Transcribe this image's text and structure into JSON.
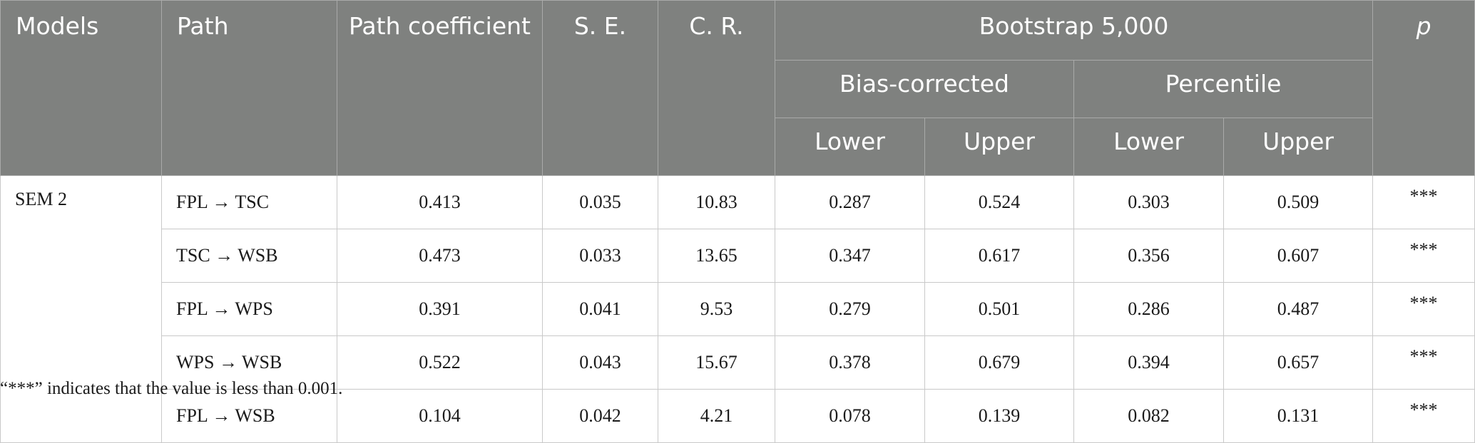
{
  "headers": {
    "models": "Models",
    "path": "Path",
    "path_coefficient": "Path coefficient",
    "se": "S. E.",
    "cr": "C. R.",
    "bootstrap": "Bootstrap 5,000",
    "p": "p",
    "bias_corrected": "Bias-corrected",
    "percentile": "Percentile",
    "bc_lower": "Lower",
    "bc_upper": "Upper",
    "pc_lower": "Lower",
    "pc_upper": "Upper"
  },
  "model_label": "SEM 2",
  "rows": [
    {
      "path": "FPL → TSC",
      "coef": "0.413",
      "se": "0.035",
      "cr": "10.83",
      "bc_lower": "0.287",
      "bc_upper": "0.524",
      "pc_lower": "0.303",
      "pc_upper": "0.509",
      "p": "***"
    },
    {
      "path": "TSC → WSB",
      "coef": "0.473",
      "se": "0.033",
      "cr": "13.65",
      "bc_lower": "0.347",
      "bc_upper": "0.617",
      "pc_lower": "0.356",
      "pc_upper": "0.607",
      "p": "***"
    },
    {
      "path": "FPL → WPS",
      "coef": "0.391",
      "se": "0.041",
      "cr": "9.53",
      "bc_lower": "0.279",
      "bc_upper": "0.501",
      "pc_lower": "0.286",
      "pc_upper": "0.487",
      "p": "***"
    },
    {
      "path": "WPS → WSB",
      "coef": "0.522",
      "se": "0.043",
      "cr": "15.67",
      "bc_lower": "0.378",
      "bc_upper": "0.679",
      "pc_lower": "0.394",
      "pc_upper": "0.657",
      "p": "***"
    },
    {
      "path": "FPL → WSB",
      "coef": "0.104",
      "se": "0.042",
      "cr": "4.21",
      "bc_lower": "0.078",
      "bc_upper": "0.139",
      "pc_lower": "0.082",
      "pc_upper": "0.131",
      "p": "***"
    }
  ],
  "footnote": "“***” indicates that the value is less than 0.001.",
  "colors": {
    "header_bg": "#7f817f",
    "header_text": "#ffffff",
    "grid": "#c9c9c9"
  }
}
